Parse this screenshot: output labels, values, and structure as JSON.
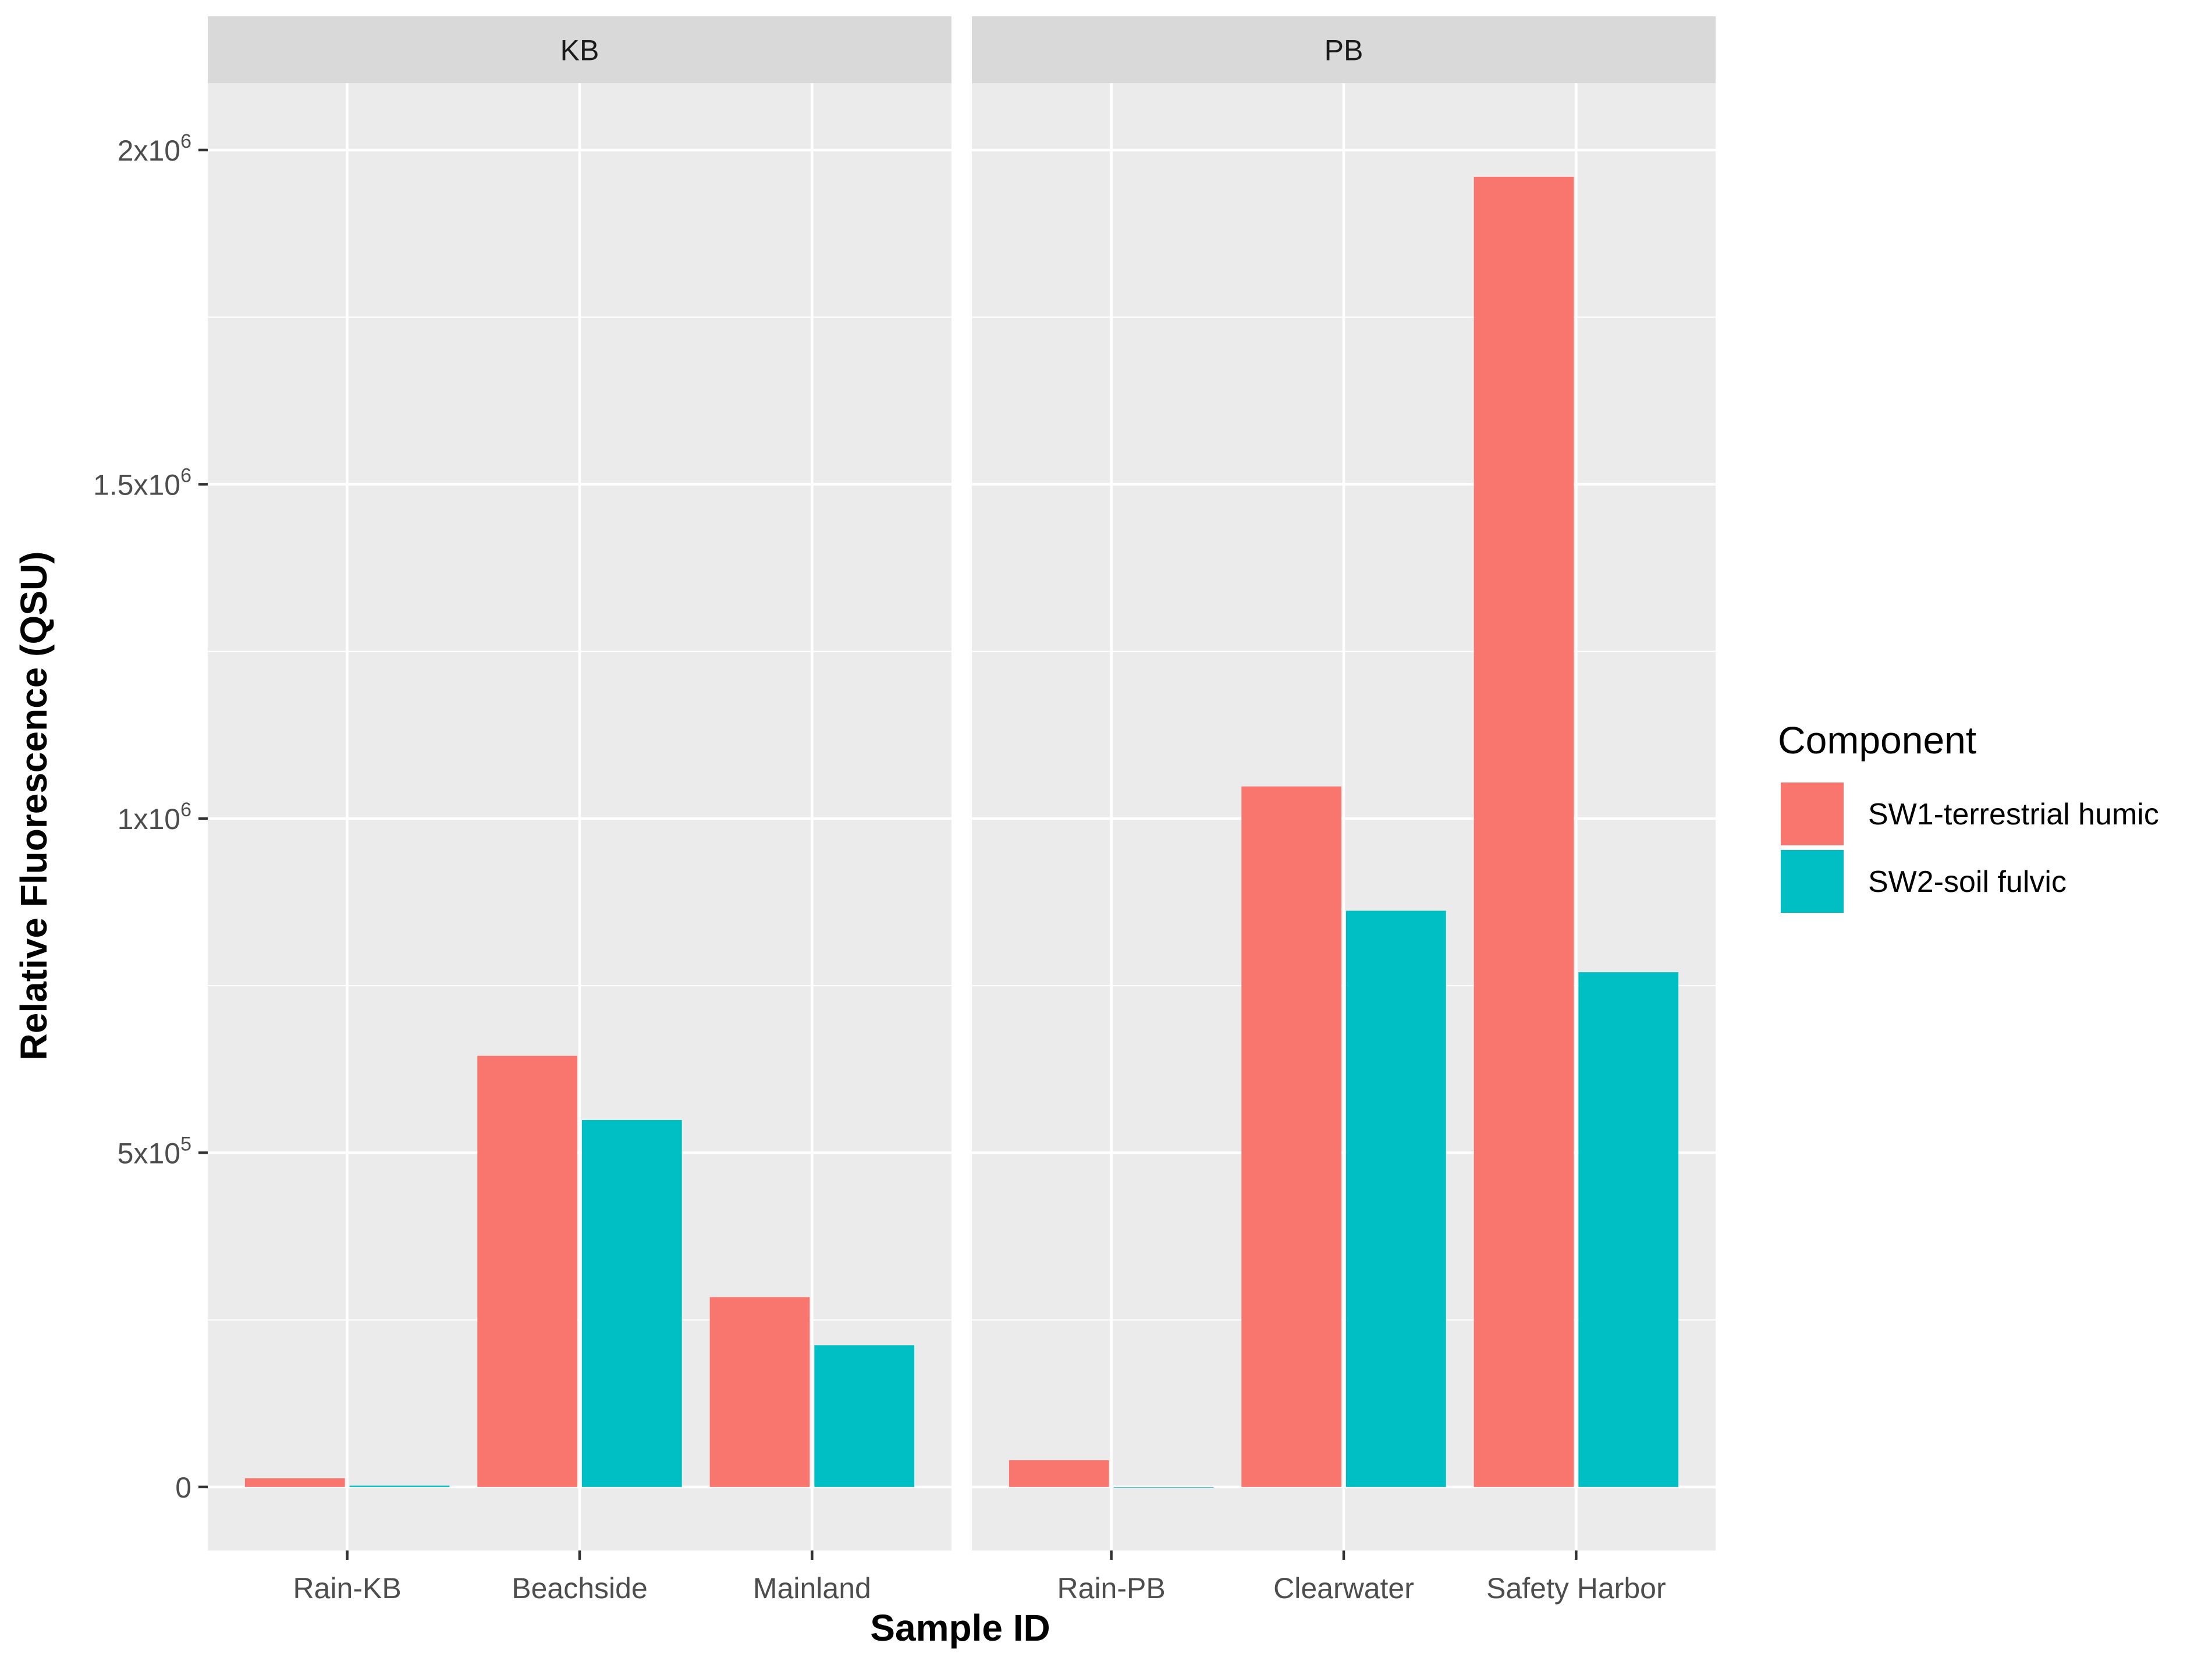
{
  "chart_data": {
    "type": "bar",
    "facets": [
      {
        "name": "KB",
        "categories": [
          "Rain-KB",
          "Beachside",
          "Mainland"
        ],
        "series": [
          {
            "name": "SW1-terrestrial humic",
            "values": [
              13000,
              645000,
              284000
            ]
          },
          {
            "name": "SW2-soil fulvic",
            "values": [
              2000,
              549000,
              212000
            ]
          }
        ]
      },
      {
        "name": "PB",
        "categories": [
          "Rain-PB",
          "Clearwater",
          "Safety Harbor"
        ],
        "series": [
          {
            "name": "SW1-terrestrial humic",
            "values": [
              40000,
              1048000,
              1960000
            ]
          },
          {
            "name": "SW2-soil fulvic",
            "values": [
              0,
              862000,
              770000
            ]
          }
        ]
      }
    ],
    "xlabel": "Sample ID",
    "ylabel": "Relative Fluorescence (QSU)",
    "ylim": [
      -95000,
      2100000
    ],
    "yticks": [
      0,
      500000,
      1000000,
      1500000,
      2000000
    ],
    "ytick_labels": [
      {
        "base": "0",
        "exp": ""
      },
      {
        "base": "5x10",
        "exp": "5"
      },
      {
        "base": "1x10",
        "exp": "6"
      },
      {
        "base": "1.5x10",
        "exp": "6"
      },
      {
        "base": "2x10",
        "exp": "6"
      }
    ],
    "ygrid_minor": [
      250000,
      750000,
      1250000,
      1750000
    ],
    "grid": true,
    "legend": {
      "title": "Component",
      "position": "right",
      "entries": [
        {
          "label": "SW1-terrestrial humic",
          "color": "#F8766D"
        },
        {
          "label": "SW2-soil fulvic",
          "color": "#00BFC4"
        }
      ]
    },
    "colors": {
      "panel_bg": "#EBEBEB",
      "strip_bg": "#D9D9D9",
      "grid": "#FFFFFF"
    }
  }
}
